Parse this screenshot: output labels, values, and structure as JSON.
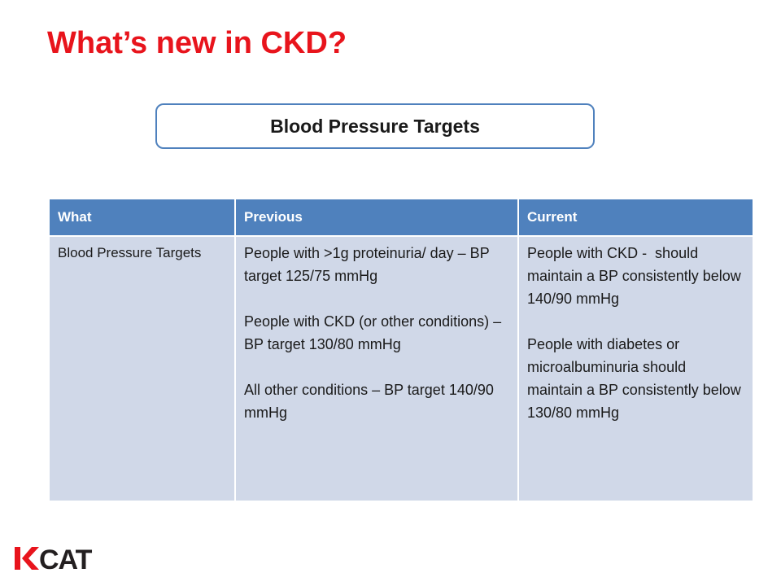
{
  "slide": {
    "title": "What’s new in CKD?",
    "section_heading": "Blood Pressure Targets"
  },
  "table": {
    "headers": [
      "What",
      "Previous",
      "Current"
    ],
    "row": {
      "what": "Blood Pressure Targets",
      "previous": [
        "People with >1g proteinuria/ day – BP target 125/75 mmHg",
        "People with CKD (or other conditions) – BP target 130/80 mmHg",
        "All other conditions – BP target 140/90 mmHg"
      ],
      "current": [
        "People with CKD -  should maintain a BP consistently below 140/90 mmHg",
        "People with diabetes or microalbuminuria should maintain a BP consistently below 130/80 mmHg"
      ]
    }
  },
  "logo": {
    "text": "KCAT",
    "colors": {
      "accent": "#e8141c",
      "dark": "#231f20"
    }
  },
  "colors": {
    "title_red": "#e8141c",
    "header_blue": "#4f81bd",
    "cell_fill": "#d0d8e8"
  }
}
